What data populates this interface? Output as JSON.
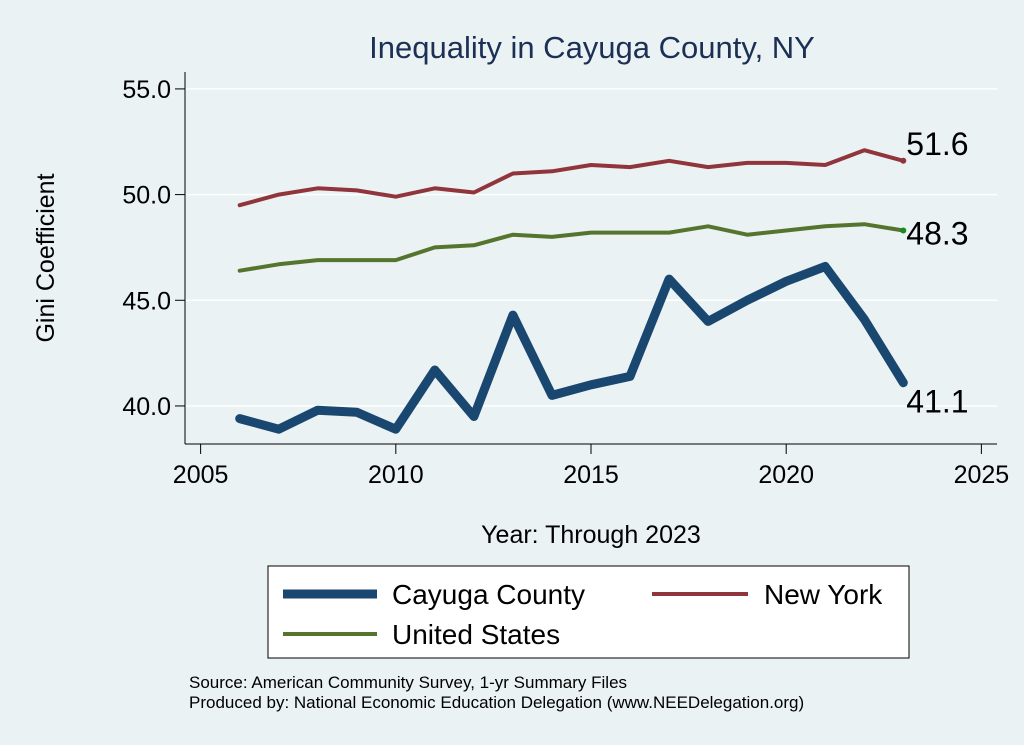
{
  "chart_data": {
    "type": "line",
    "title": "Inequality in Cayuga County, NY",
    "xlabel": "Year: Through 2023",
    "ylabel": "Gini Coefficient",
    "xlim": [
      2004.6,
      2025.4
    ],
    "ylim": [
      38.2,
      55.8
    ],
    "xticks": [
      2005,
      2010,
      2015,
      2020,
      2025
    ],
    "yticks": [
      40,
      45,
      50,
      55
    ],
    "grid": true,
    "legend_position": "bottom",
    "series": [
      {
        "name": "Cayuga County",
        "color": "#1a476f",
        "end_label": "41.1",
        "x": [
          2006,
          2007,
          2008,
          2009,
          2010,
          2011,
          2012,
          2013,
          2014,
          2015,
          2016,
          2017,
          2018,
          2019,
          2020,
          2021,
          2022,
          2023
        ],
        "y": [
          39.4,
          38.9,
          39.8,
          39.7,
          38.9,
          41.7,
          39.5,
          44.3,
          40.5,
          41.0,
          41.4,
          46.0,
          44.0,
          45.0,
          45.9,
          46.6,
          44.1,
          41.1
        ]
      },
      {
        "name": "New York",
        "color": "#90353b",
        "end_label": "51.6",
        "x": [
          2006,
          2007,
          2008,
          2009,
          2010,
          2011,
          2012,
          2013,
          2014,
          2015,
          2016,
          2017,
          2018,
          2019,
          2020,
          2021,
          2022,
          2023
        ],
        "y": [
          49.5,
          50.0,
          50.3,
          50.2,
          49.9,
          50.3,
          50.1,
          51.0,
          51.1,
          51.4,
          51.3,
          51.6,
          51.3,
          51.5,
          51.5,
          51.4,
          52.1,
          51.6
        ]
      },
      {
        "name": "United States",
        "color": "#55752f",
        "end_label": "48.3",
        "x": [
          2006,
          2007,
          2008,
          2009,
          2010,
          2011,
          2012,
          2013,
          2014,
          2015,
          2016,
          2017,
          2018,
          2019,
          2020,
          2021,
          2022,
          2023
        ],
        "y": [
          46.4,
          46.7,
          46.9,
          46.9,
          46.9,
          47.5,
          47.6,
          48.1,
          48.0,
          48.2,
          48.2,
          48.2,
          48.5,
          48.1,
          48.3,
          48.5,
          48.6,
          48.3
        ]
      }
    ],
    "notes": [
      "Source: American Community Survey, 1-yr Summary Files",
      "Produced by: National Economic Education Delegation (www.NEEDelegation.org)"
    ]
  }
}
